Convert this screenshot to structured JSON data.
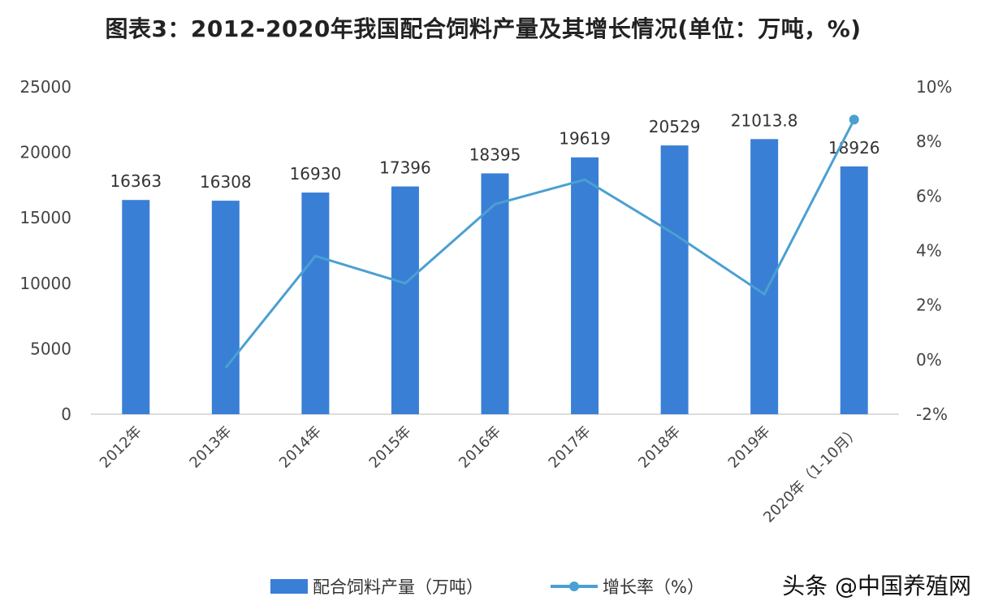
{
  "chart_data": {
    "type": "bar+line",
    "title": "图表3：2012-2020年我国配合饲料产量及其增长情况(单位：万吨，%)",
    "categories": [
      "2012年",
      "2013年",
      "2014年",
      "2015年",
      "2016年",
      "2017年",
      "2018年",
      "2019年",
      "2020年（1-10月）"
    ],
    "series": [
      {
        "name": "配合饲料产量（万吨）",
        "type": "bar",
        "axis": "left",
        "color": "#3a7fd6",
        "values": [
          16363,
          16308,
          16930,
          17396,
          18395,
          19619,
          20529,
          21013.8,
          18926
        ],
        "labels": [
          "16363",
          "16308",
          "16930",
          "17396",
          "18395",
          "19619",
          "20529",
          "21013.8",
          "18926"
        ]
      },
      {
        "name": "增长率（%）",
        "type": "line",
        "axis": "right",
        "color": "#4aa0d2",
        "values": [
          null,
          -0.3,
          3.8,
          2.8,
          5.7,
          6.6,
          4.6,
          2.4,
          8.8
        ]
      }
    ],
    "left_axis": {
      "ylim": [
        0,
        25000
      ],
      "ticks": [
        "0",
        "5000",
        "10000",
        "15000",
        "20000",
        "25000"
      ]
    },
    "right_axis": {
      "ylim": [
        -2,
        10
      ],
      "ticks": [
        "-2%",
        "0%",
        "2%",
        "4%",
        "6%",
        "8%",
        "10%"
      ]
    },
    "grid": false,
    "legend": "bottom"
  },
  "watermark": "头条 @中国养殖网"
}
